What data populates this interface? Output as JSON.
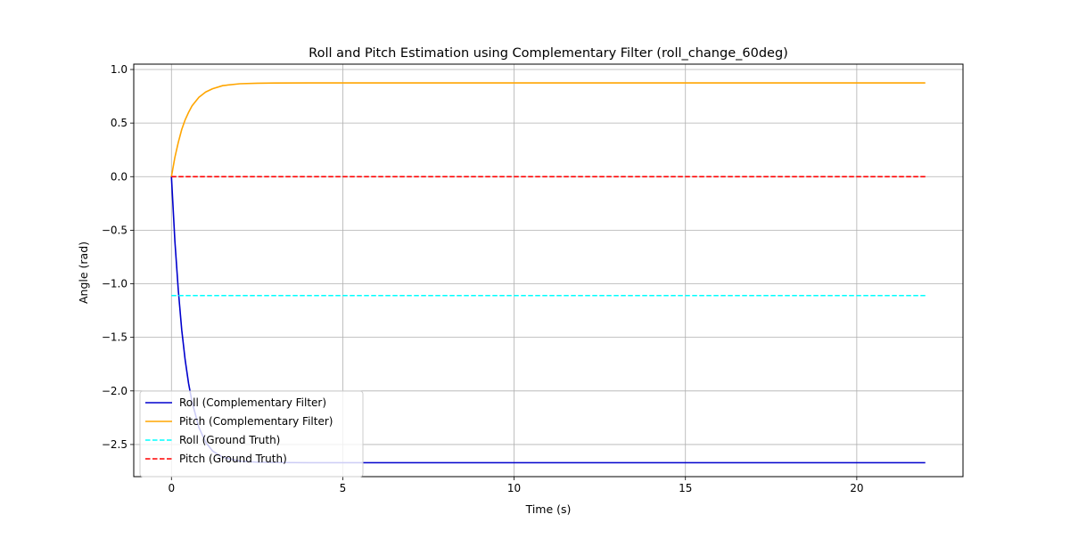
{
  "chart_data": {
    "type": "line",
    "title": "Roll and Pitch Estimation using Complementary Filter (roll_change_60deg)",
    "xlabel": "Time (s)",
    "ylabel": "Angle (rad)",
    "xlim": [
      -1.1,
      23.1
    ],
    "ylim": [
      -2.8,
      1.05
    ],
    "x_ticks": [
      0,
      5,
      10,
      15,
      20
    ],
    "x_tick_labels": [
      "0",
      "5",
      "10",
      "15",
      "20"
    ],
    "y_ticks": [
      1.0,
      0.5,
      0.0,
      -0.5,
      -1.0,
      -1.5,
      -2.0,
      -2.5
    ],
    "y_tick_labels": [
      "1.0",
      "0.5",
      "0.0",
      "−0.5",
      "−1.0",
      "−1.5",
      "−2.0",
      "−2.5"
    ],
    "grid": true,
    "legend_position": "lower-left",
    "series": [
      {
        "name": "Roll (Complementary Filter)",
        "color": "#0000cd",
        "style": "solid",
        "x": [
          0,
          0.1,
          0.2,
          0.3,
          0.4,
          0.5,
          0.6,
          0.8,
          1.0,
          1.2,
          1.5,
          2.0,
          2.5,
          3.0,
          4.0,
          5.0,
          6.0,
          10.0,
          15.0,
          22.0
        ],
        "y": [
          0.0,
          -0.6,
          -1.06,
          -1.43,
          -1.71,
          -1.93,
          -2.1,
          -2.34,
          -2.48,
          -2.56,
          -2.62,
          -2.655,
          -2.665,
          -2.668,
          -2.67,
          -2.67,
          -2.67,
          -2.67,
          -2.67,
          -2.67
        ]
      },
      {
        "name": "Pitch (Complementary Filter)",
        "color": "#ffa500",
        "style": "solid",
        "x": [
          0,
          0.1,
          0.2,
          0.3,
          0.4,
          0.5,
          0.6,
          0.8,
          1.0,
          1.2,
          1.5,
          2.0,
          2.5,
          3.0,
          4.0,
          5.0,
          10.0,
          15.0,
          22.0
        ],
        "y": [
          0.0,
          0.18,
          0.32,
          0.44,
          0.53,
          0.6,
          0.66,
          0.74,
          0.79,
          0.82,
          0.85,
          0.867,
          0.872,
          0.874,
          0.875,
          0.875,
          0.875,
          0.875,
          0.875
        ]
      },
      {
        "name": "Roll (Ground Truth)",
        "color": "#00ffff",
        "style": "dashed",
        "x": [
          0,
          22.0
        ],
        "y": [
          -1.11,
          -1.11
        ]
      },
      {
        "name": "Pitch (Ground Truth)",
        "color": "#ff0000",
        "style": "dashed",
        "x": [
          0,
          22.0
        ],
        "y": [
          0.0,
          0.0
        ]
      }
    ]
  }
}
